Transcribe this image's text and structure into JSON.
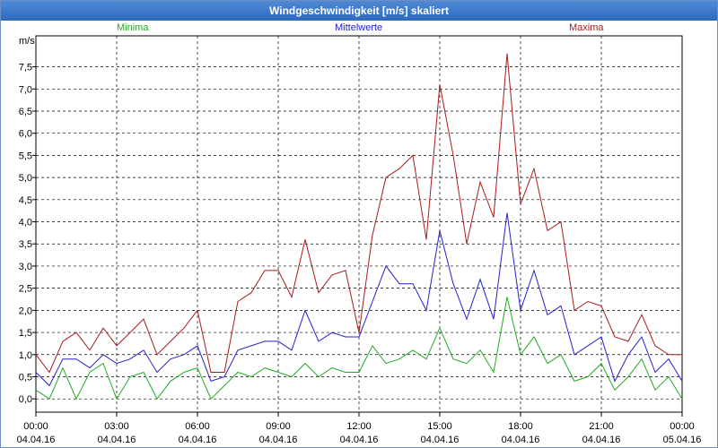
{
  "window": {
    "title": "Windgeschwindigkeit [m/s] skaliert"
  },
  "legend": {
    "minima": {
      "label": "Minima",
      "color": "#22aa22"
    },
    "mittel": {
      "label": "Mittelwerte",
      "color": "#2222cc"
    },
    "maxima": {
      "label": "Maxima",
      "color": "#aa1a1a"
    }
  },
  "chart_data": {
    "type": "line",
    "ylabel": "m/s",
    "ylim": [
      -0.3,
      8.2
    ],
    "xlim": [
      0,
      24
    ],
    "yticks": [
      "0,0",
      "0,5",
      "1,0",
      "1,5",
      "2,0",
      "2,5",
      "3,0",
      "3,5",
      "4,0",
      "4,5",
      "5,0",
      "5,5",
      "6,0",
      "6,5",
      "7,0",
      "7,5"
    ],
    "xticks": [
      {
        "time": "00:00",
        "date": "04.04.16"
      },
      {
        "time": "03:00",
        "date": "04.04.16"
      },
      {
        "time": "06:00",
        "date": "04.04.16"
      },
      {
        "time": "09:00",
        "date": "04.04.16"
      },
      {
        "time": "12:00",
        "date": "04.04.16"
      },
      {
        "time": "15:00",
        "date": "04.04.16"
      },
      {
        "time": "18:00",
        "date": "04.04.16"
      },
      {
        "time": "21:00",
        "date": "04.04.16"
      },
      {
        "time": "00:00",
        "date": "05.04.16"
      }
    ],
    "grid": true,
    "series": [
      {
        "name": "Maxima",
        "color": "#aa1a1a",
        "x": [
          0,
          0.5,
          1,
          1.5,
          2,
          2.5,
          3,
          3.5,
          4,
          4.5,
          5,
          5.5,
          6,
          6.5,
          7,
          7.5,
          8,
          8.5,
          9,
          9.5,
          10,
          10.5,
          11,
          11.5,
          12,
          12.5,
          13,
          13.5,
          14,
          14.5,
          15,
          15.5,
          16,
          16.5,
          17,
          17.5,
          18,
          18.5,
          19,
          19.5,
          20,
          20.5,
          21,
          21.5,
          22,
          22.5,
          23,
          23.5,
          24
        ],
        "values": [
          1.0,
          0.6,
          1.3,
          1.5,
          1.1,
          1.6,
          1.2,
          1.5,
          1.8,
          1.0,
          1.3,
          1.6,
          2.0,
          0.6,
          0.6,
          2.2,
          2.4,
          2.9,
          2.9,
          2.3,
          3.6,
          2.4,
          2.8,
          2.9,
          1.5,
          3.7,
          5.0,
          5.2,
          5.5,
          3.6,
          7.1,
          5.5,
          3.5,
          4.9,
          4.1,
          7.8,
          4.4,
          5.2,
          3.8,
          4.0,
          2.0,
          2.2,
          2.1,
          1.4,
          1.3,
          1.9,
          1.2,
          1.0,
          1.0
        ]
      },
      {
        "name": "Mittelwerte",
        "color": "#2222cc",
        "x": [
          0,
          0.5,
          1,
          1.5,
          2,
          2.5,
          3,
          3.5,
          4,
          4.5,
          5,
          5.5,
          6,
          6.5,
          7,
          7.5,
          8,
          8.5,
          9,
          9.5,
          10,
          10.5,
          11,
          11.5,
          12,
          12.5,
          13,
          13.5,
          14,
          14.5,
          15,
          15.5,
          16,
          16.5,
          17,
          17.5,
          18,
          18.5,
          19,
          19.5,
          20,
          20.5,
          21,
          21.5,
          22,
          22.5,
          23,
          23.5,
          24
        ],
        "values": [
          0.6,
          0.3,
          0.9,
          0.9,
          0.7,
          1.0,
          0.8,
          0.9,
          1.1,
          0.6,
          0.9,
          1.0,
          1.2,
          0.4,
          0.5,
          1.1,
          1.2,
          1.3,
          1.3,
          1.1,
          2.0,
          1.3,
          1.5,
          1.4,
          1.4,
          2.2,
          3.0,
          2.6,
          2.6,
          2.0,
          3.8,
          2.6,
          1.8,
          2.7,
          1.8,
          4.2,
          2.0,
          2.9,
          1.9,
          2.1,
          1.0,
          1.2,
          1.4,
          0.4,
          1.0,
          1.4,
          0.6,
          0.9,
          0.4
        ]
      },
      {
        "name": "Minima",
        "color": "#22aa22",
        "x": [
          0,
          0.5,
          1,
          1.5,
          2,
          2.5,
          3,
          3.5,
          4,
          4.5,
          5,
          5.5,
          6,
          6.5,
          7,
          7.5,
          8,
          8.5,
          9,
          9.5,
          10,
          10.5,
          11,
          11.5,
          12,
          12.5,
          13,
          13.5,
          14,
          14.5,
          15,
          15.5,
          16,
          16.5,
          17,
          17.5,
          18,
          18.5,
          19,
          19.5,
          20,
          20.5,
          21,
          21.5,
          22,
          22.5,
          23,
          23.5,
          24
        ],
        "values": [
          0.2,
          0.0,
          0.7,
          0.0,
          0.6,
          0.8,
          0.0,
          0.5,
          0.6,
          0.0,
          0.4,
          0.6,
          0.7,
          0.0,
          0.3,
          0.6,
          0.5,
          0.7,
          0.6,
          0.5,
          0.8,
          0.5,
          0.7,
          0.6,
          0.6,
          1.2,
          0.8,
          0.9,
          1.1,
          0.9,
          1.6,
          0.9,
          0.8,
          1.1,
          0.6,
          2.3,
          1.0,
          1.4,
          0.8,
          1.0,
          0.4,
          0.5,
          0.8,
          0.2,
          0.5,
          0.9,
          0.2,
          0.5,
          0.0
        ]
      }
    ]
  }
}
